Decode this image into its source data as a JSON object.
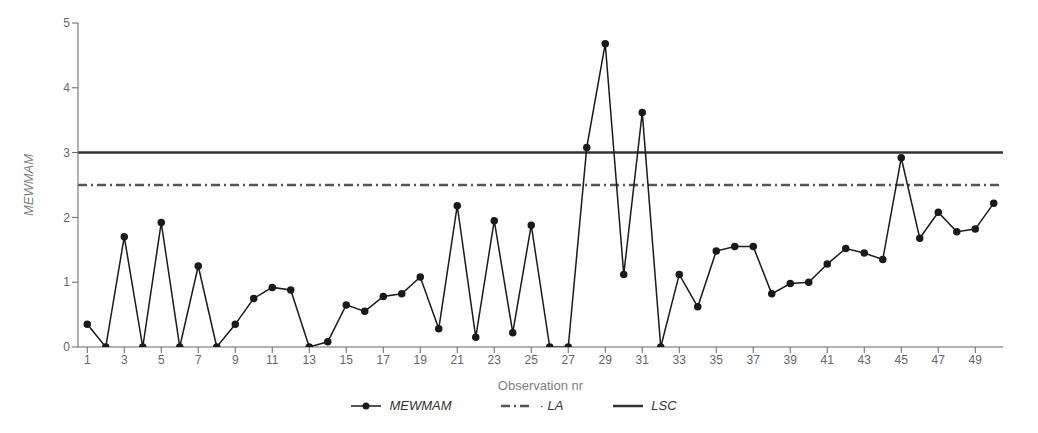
{
  "chart_data": {
    "type": "line",
    "x": [
      1,
      2,
      3,
      4,
      5,
      6,
      7,
      8,
      9,
      10,
      11,
      12,
      13,
      14,
      15,
      16,
      17,
      18,
      19,
      20,
      21,
      22,
      23,
      24,
      25,
      26,
      27,
      28,
      29,
      30,
      31,
      32,
      33,
      34,
      35,
      36,
      37,
      38,
      39,
      40,
      41,
      42,
      43,
      44,
      45,
      46,
      47,
      48,
      49,
      50
    ],
    "series": [
      {
        "name": "MEWMAM",
        "color": "#1a1a1a",
        "marker": "circle",
        "line_style": "solid",
        "values": [
          0.35,
          0.0,
          1.7,
          0.0,
          1.92,
          0.0,
          1.25,
          0.0,
          0.35,
          0.75,
          0.92,
          0.88,
          0.0,
          0.08,
          0.65,
          0.55,
          0.78,
          0.82,
          1.08,
          0.28,
          2.18,
          0.15,
          1.95,
          0.22,
          1.88,
          0.0,
          0.0,
          3.08,
          4.68,
          1.12,
          3.62,
          0.0,
          1.12,
          0.62,
          1.48,
          1.55,
          1.55,
          0.82,
          0.98,
          1.0,
          1.28,
          1.52,
          1.45,
          1.35,
          2.92,
          1.68,
          2.08,
          1.78,
          1.82,
          2.22
        ]
      },
      {
        "name": "· LA",
        "type": "hline",
        "color": "#555555",
        "line_style": "dashdot",
        "value": 2.5
      },
      {
        "name": "LSC",
        "type": "hline",
        "color": "#333333",
        "line_style": "solid",
        "value": 3.0
      }
    ],
    "xlabel": "Observation nr",
    "ylabel": "MEWMAM",
    "xlim": [
      0.5,
      50.5
    ],
    "ylim": [
      0,
      5
    ],
    "xticks": [
      1,
      3,
      5,
      7,
      9,
      11,
      13,
      15,
      17,
      19,
      21,
      23,
      25,
      27,
      29,
      31,
      33,
      35,
      37,
      39,
      41,
      43,
      45,
      47,
      49
    ],
    "yticks": [
      0,
      1,
      2,
      3,
      4,
      5
    ],
    "grid": false,
    "legend": "bottom"
  }
}
